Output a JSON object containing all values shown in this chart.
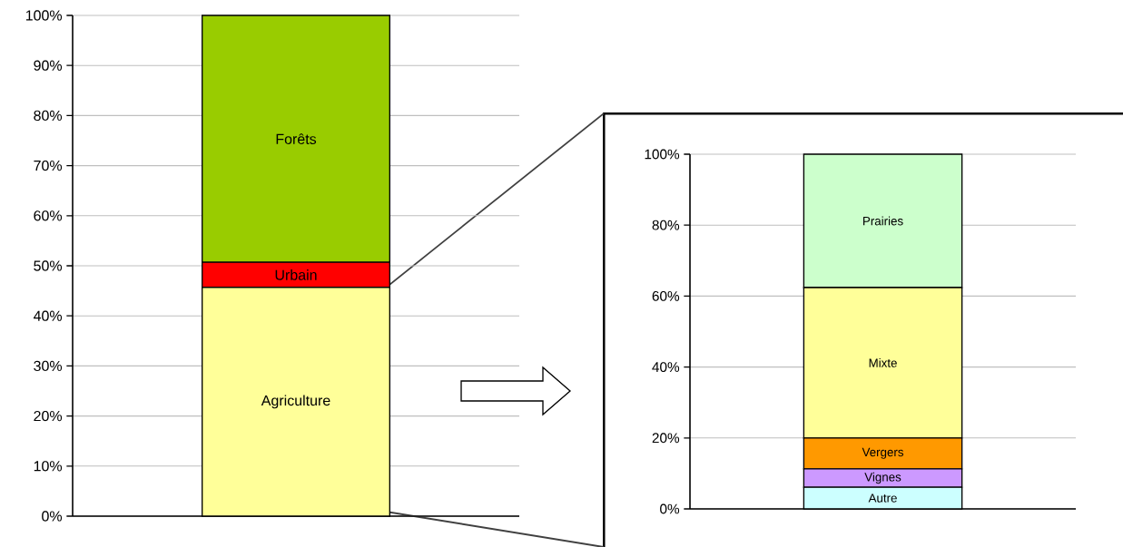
{
  "chart_data": [
    {
      "type": "bar",
      "stacked": true,
      "grid": "y",
      "categories": [
        null
      ],
      "ylim": [
        0,
        100
      ],
      "yticks": [
        {
          "value": 0,
          "label": "0%"
        },
        {
          "value": 10,
          "label": "10%"
        },
        {
          "value": 20,
          "label": "20%"
        },
        {
          "value": 30,
          "label": "30%"
        },
        {
          "value": 40,
          "label": "40%"
        },
        {
          "value": 50,
          "label": "50%"
        },
        {
          "value": 60,
          "label": "60%"
        },
        {
          "value": 70,
          "label": "70%"
        },
        {
          "value": 80,
          "label": "80%"
        },
        {
          "value": 90,
          "label": "90%"
        },
        {
          "value": 100,
          "label": "100%"
        }
      ],
      "series": [
        {
          "name": "Agriculture",
          "color": "#ffff99",
          "values": [
            45.7
          ]
        },
        {
          "name": "Urbain",
          "color": "#ff0000",
          "values": [
            5.0
          ]
        },
        {
          "name": "Forêts",
          "color": "#99cc00",
          "values": [
            49.3
          ]
        }
      ]
    },
    {
      "type": "bar",
      "stacked": true,
      "grid": "y",
      "categories": [
        null
      ],
      "ylim": [
        0,
        100
      ],
      "yticks": [
        {
          "value": 0,
          "label": "0%"
        },
        {
          "value": 20,
          "label": "20%"
        },
        {
          "value": 40,
          "label": "40%"
        },
        {
          "value": 60,
          "label": "60%"
        },
        {
          "value": 80,
          "label": "80%"
        },
        {
          "value": 100,
          "label": "100%"
        }
      ],
      "series": [
        {
          "name": "Autre",
          "color": "#ccffff",
          "values": [
            6.1
          ]
        },
        {
          "name": "Vignes",
          "color": "#cc99ff",
          "values": [
            5.2
          ]
        },
        {
          "name": "Vergers",
          "color": "#ff9900",
          "values": [
            8.7
          ]
        },
        {
          "name": "Mixte",
          "color": "#ffff99",
          "values": [
            42.4
          ]
        },
        {
          "name": "Prairies",
          "color": "#ccffcc",
          "values": [
            37.6
          ]
        }
      ]
    }
  ]
}
